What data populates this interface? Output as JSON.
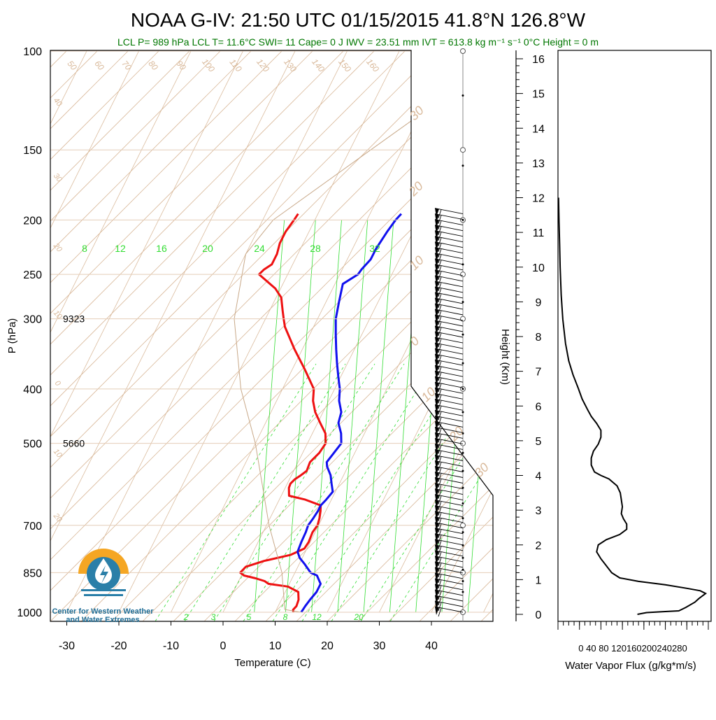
{
  "header": {
    "title": "NOAA G-IV: 21:50 UTC 01/15/2015  41.8°N 126.8°W",
    "subtitle": "LCL P= 989 hPa  LCL T= 11.6°C  SWI= 11  Cape= 0 J  IWV = 23.51 mm  IVT = 613.8 kg m⁻¹ s⁻¹  0°C Height = 0 m"
  },
  "logo": {
    "line1": "Center for Western Weather",
    "line2": "and Water Extremes",
    "colors": {
      "sun": "#f5a623",
      "water": "#2a7fa8",
      "drop": "#ffffff"
    }
  },
  "colors": {
    "temperature": "#ee1111",
    "dewpoint": "#1111ee",
    "parcel": "#c8a888",
    "isotherm": "#d9b99a",
    "mixing_ratio": "#33dd33",
    "barb": "#000000"
  },
  "chart_data": [
    {
      "type": "line",
      "kind": "skew-t log-p",
      "xlabel": "Temperature (C)",
      "ylabel": "P (hPa)",
      "x_ticks": [
        -30,
        -20,
        -10,
        0,
        10,
        20,
        30,
        40
      ],
      "y_ticks": [
        100,
        150,
        200,
        250,
        300,
        400,
        500,
        700,
        850,
        1000
      ],
      "ylim": [
        1000,
        100
      ],
      "xlim": [
        -33,
        40
      ],
      "height_annotations": [
        {
          "p": 300,
          "label": "9323"
        },
        {
          "p": 500,
          "label": "5660"
        }
      ],
      "mixing_ratio_labels_top": [
        "8",
        "12",
        "16",
        "20",
        "24",
        "28",
        "32"
      ],
      "mixing_ratio_labels_bottom": [
        "2",
        "3",
        "5",
        "8",
        "12",
        "20"
      ],
      "dry_adiabat_labels": [
        "50",
        "60",
        "70",
        "80",
        "90",
        "100",
        "110",
        "120",
        "130",
        "140",
        "150",
        "160"
      ],
      "theta_labels_left": [
        "40",
        "30",
        "20",
        "10",
        "0",
        "10",
        "20"
      ],
      "theta_labels_right": [
        "30",
        "20",
        "10",
        "0",
        "10",
        "20",
        "30"
      ],
      "series": [
        {
          "name": "temperature",
          "points": [
            [
              1000,
              13.5
            ],
            [
              990,
              13.2
            ],
            [
              975,
              13.5
            ],
            [
              950,
              13.3
            ],
            [
              920,
              12.5
            ],
            [
              900,
              10.0
            ],
            [
              890,
              6.0
            ],
            [
              880,
              5.0
            ],
            [
              870,
              3.0
            ],
            [
              860,
              0.5
            ],
            [
              850,
              -0.5
            ],
            [
              830,
              0.0
            ],
            [
              810,
              3.0
            ],
            [
              790,
              7.5
            ],
            [
              770,
              9.5
            ],
            [
              750,
              9.7
            ],
            [
              720,
              9.5
            ],
            [
              700,
              9.8
            ],
            [
              680,
              9.5
            ],
            [
              660,
              9.0
            ],
            [
              645,
              8.5
            ],
            [
              630,
              5.0
            ],
            [
              620,
              1.5
            ],
            [
              600,
              0.7
            ],
            [
              590,
              0.6
            ],
            [
              580,
              1.0
            ],
            [
              570,
              1.8
            ],
            [
              560,
              2.5
            ],
            [
              540,
              2.3
            ],
            [
              520,
              3.2
            ],
            [
              500,
              3.5
            ],
            [
              480,
              2.5
            ],
            [
              460,
              0.5
            ],
            [
              440,
              -1.5
            ],
            [
              420,
              -3.0
            ],
            [
              400,
              -4.0
            ],
            [
              370,
              -7.5
            ],
            [
              340,
              -11.5
            ],
            [
              310,
              -15.5
            ],
            [
              300,
              -16.5
            ],
            [
              290,
              -17.5
            ],
            [
              280,
              -18.5
            ],
            [
              275,
              -19.0
            ],
            [
              265,
              -21.0
            ],
            [
              250,
              -25.5
            ],
            [
              245,
              -25.0
            ],
            [
              240,
              -24.0
            ],
            [
              230,
              -24.0
            ],
            [
              220,
              -24.5
            ],
            [
              210,
              -24.5
            ],
            [
              200,
              -24.0
            ],
            [
              195,
              -23.8
            ]
          ]
        },
        {
          "name": "dewpoint",
          "points": [
            [
              1000,
              15.0
            ],
            [
              975,
              15.2
            ],
            [
              950,
              15.5
            ],
            [
              920,
              16.0
            ],
            [
              890,
              16.0
            ],
            [
              860,
              14.5
            ],
            [
              850,
              13.0
            ],
            [
              820,
              11.0
            ],
            [
              800,
              9.5
            ],
            [
              780,
              8.5
            ],
            [
              750,
              8.3
            ],
            [
              720,
              8.2
            ],
            [
              700,
              8.0
            ],
            [
              680,
              8.3
            ],
            [
              660,
              8.5
            ],
            [
              645,
              8.5
            ],
            [
              630,
              9.0
            ],
            [
              610,
              9.5
            ],
            [
              590,
              8.5
            ],
            [
              570,
              7.5
            ],
            [
              550,
              6.0
            ],
            [
              540,
              5.5
            ],
            [
              520,
              6.0
            ],
            [
              500,
              6.5
            ],
            [
              480,
              5.5
            ],
            [
              460,
              4.0
            ],
            [
              440,
              3.5
            ],
            [
              420,
              2.0
            ],
            [
              400,
              1.0
            ],
            [
              380,
              -0.5
            ],
            [
              360,
              -2.0
            ],
            [
              340,
              -3.5
            ],
            [
              320,
              -5.0
            ],
            [
              300,
              -6.5
            ],
            [
              280,
              -7.5
            ],
            [
              260,
              -8.5
            ],
            [
              250,
              -6.5
            ],
            [
              245,
              -6.3
            ],
            [
              235,
              -5.5
            ],
            [
              225,
              -5.5
            ],
            [
              210,
              -5.0
            ],
            [
              200,
              -4.5
            ],
            [
              195,
              -4.0
            ]
          ]
        },
        {
          "name": "parcel",
          "points": [
            [
              1000,
              15.0
            ],
            [
              989,
              11.6
            ],
            [
              850,
              7.5
            ],
            [
              700,
              0.5
            ],
            [
              500,
              -10.0
            ],
            [
              400,
              -18.0
            ],
            [
              300,
              -26.0
            ],
            [
              230,
              -30.0
            ],
            [
              200,
              -28.0
            ],
            [
              150,
              -16.0
            ],
            [
              110,
              -3.0
            ]
          ]
        }
      ],
      "wind_barbs": {
        "p_top": 195,
        "p_bottom": 1000,
        "count": 72,
        "direction_deg": 255,
        "speed_kt": 45
      }
    },
    {
      "type": "line",
      "kind": "water vapor flux profile",
      "xlabel": "Water Vapor Flux (g/kg*m/s)",
      "ylabel": "Height (Km)",
      "x_ticks": [
        0,
        40,
        80,
        120,
        160,
        200,
        240,
        280
      ],
      "x_tick_labels_text": "0  40  80 120160200240280",
      "y_ticks": [
        0,
        1,
        2,
        3,
        4,
        5,
        6,
        7,
        8,
        9,
        10,
        11,
        12,
        13,
        14,
        15,
        16
      ],
      "xlim": [
        0,
        280
      ],
      "ylim": [
        -0.3,
        16.4
      ],
      "series": [
        {
          "name": "flux",
          "points": [
            [
              148,
              0.0
            ],
            [
              165,
              0.05
            ],
            [
              200,
              0.08
            ],
            [
              225,
              0.1
            ],
            [
              238,
              0.2
            ],
            [
              255,
              0.35
            ],
            [
              262,
              0.45
            ],
            [
              268,
              0.52
            ],
            [
              275,
              0.6
            ],
            [
              265,
              0.68
            ],
            [
              240,
              0.75
            ],
            [
              200,
              0.85
            ],
            [
              150,
              0.95
            ],
            [
              115,
              1.05
            ],
            [
              100,
              1.2
            ],
            [
              90,
              1.4
            ],
            [
              80,
              1.6
            ],
            [
              72,
              1.8
            ],
            [
              75,
              2.0
            ],
            [
              90,
              2.15
            ],
            [
              115,
              2.3
            ],
            [
              128,
              2.45
            ],
            [
              128,
              2.6
            ],
            [
              122,
              2.75
            ],
            [
              118,
              2.9
            ],
            [
              120,
              3.1
            ],
            [
              118,
              3.3
            ],
            [
              116,
              3.5
            ],
            [
              110,
              3.7
            ],
            [
              95,
              3.9
            ],
            [
              80,
              4.0
            ],
            [
              68,
              4.1
            ],
            [
              62,
              4.3
            ],
            [
              62,
              4.5
            ],
            [
              66,
              4.7
            ],
            [
              75,
              4.9
            ],
            [
              80,
              5.1
            ],
            [
              80,
              5.3
            ],
            [
              72,
              5.5
            ],
            [
              62,
              5.7
            ],
            [
              55,
              5.9
            ],
            [
              45,
              6.2
            ],
            [
              38,
              6.5
            ],
            [
              28,
              6.9
            ],
            [
              20,
              7.3
            ],
            [
              14,
              7.8
            ],
            [
              9,
              8.5
            ],
            [
              6,
              9.2
            ],
            [
              4,
              10.0
            ],
            [
              3,
              10.7
            ],
            [
              2,
              11.3
            ],
            [
              1,
              12.0
            ]
          ]
        }
      ]
    }
  ]
}
